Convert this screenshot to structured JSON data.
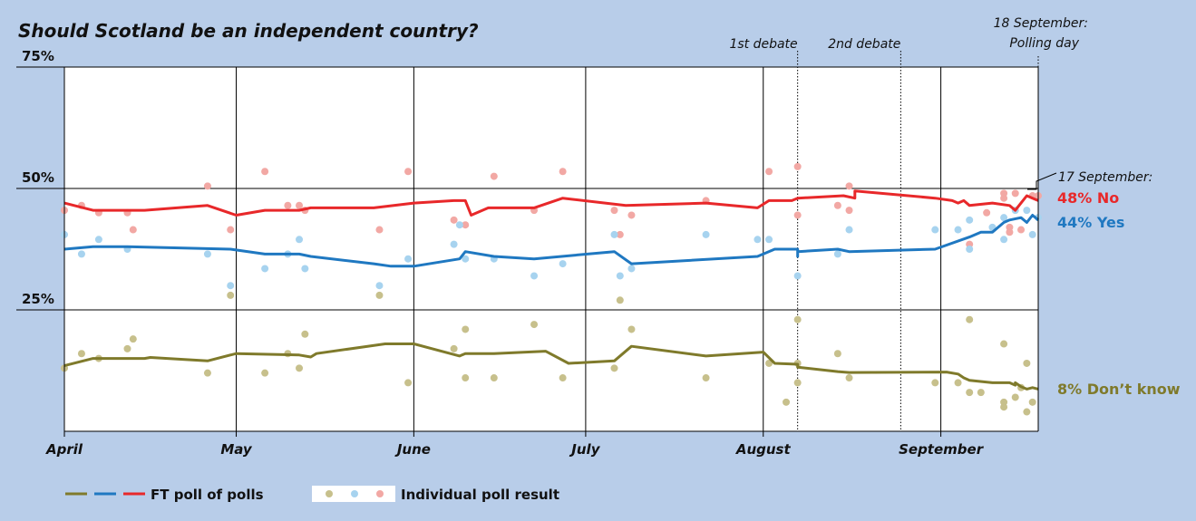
{
  "chart_data": {
    "type": "line",
    "title": "Should Scotland be an independent country?",
    "ylim": [
      0,
      75
    ],
    "y_ticks": [
      "75%",
      "50%",
      "25%"
    ],
    "y_tick_values": [
      75,
      50,
      25
    ],
    "x_range": [
      "2014-04-01",
      "2014-09-18"
    ],
    "months": [
      {
        "label": "April",
        "date": "2014-04-01"
      },
      {
        "label": "May",
        "date": "2014-05-01"
      },
      {
        "label": "June",
        "date": "2014-06-01"
      },
      {
        "label": "July",
        "date": "2014-07-01"
      },
      {
        "label": "August",
        "date": "2014-08-01"
      },
      {
        "label": "September",
        "date": "2014-09-01"
      }
    ],
    "grid": true,
    "events": [
      {
        "label": "1st debate",
        "date": "2014-08-07"
      },
      {
        "label": "2nd debate",
        "date": "2014-08-25"
      }
    ],
    "polling_day": {
      "line1": "18 September:",
      "line2": "Polling day",
      "date": "2014-09-18"
    },
    "latest_note": "17 September:",
    "colors": {
      "No": "#e8282a",
      "Yes": "#1f78c1",
      "Dont_know": "#7f7a2b",
      "No_dots": "#f2a8a4",
      "Yes_dots": "#a7d3ef",
      "Dont_know_dots": "#c7c08c"
    },
    "series": [
      {
        "key": "No",
        "end_label": "48% No",
        "line": [
          [
            "2014-04-01",
            47
          ],
          [
            "2014-04-06",
            45.5
          ],
          [
            "2014-04-15",
            45.5
          ],
          [
            "2014-04-26",
            46.5
          ],
          [
            "2014-05-01",
            44.5
          ],
          [
            "2014-05-06",
            45.5
          ],
          [
            "2014-05-12",
            45.5
          ],
          [
            "2014-05-14",
            46
          ],
          [
            "2014-05-25",
            46
          ],
          [
            "2014-06-01",
            47
          ],
          [
            "2014-06-08",
            47.5
          ],
          [
            "2014-06-10",
            47.5
          ],
          [
            "2014-06-11",
            44.5
          ],
          [
            "2014-06-14",
            46
          ],
          [
            "2014-06-22",
            46
          ],
          [
            "2014-06-27",
            48
          ],
          [
            "2014-07-08",
            46.5
          ],
          [
            "2014-07-22",
            47
          ],
          [
            "2014-07-31",
            46
          ],
          [
            "2014-08-02",
            47.5
          ],
          [
            "2014-08-06",
            47.5
          ],
          [
            "2014-08-07",
            48
          ],
          [
            "2014-08-15",
            48.5
          ],
          [
            "2014-08-17",
            48
          ],
          [
            "2014-08-17",
            49.5
          ],
          [
            "2014-08-31",
            48
          ],
          [
            "2014-09-03",
            47.5
          ],
          [
            "2014-09-04",
            47
          ],
          [
            "2014-09-05",
            47.5
          ],
          [
            "2014-09-06",
            46.5
          ],
          [
            "2014-09-10",
            47
          ],
          [
            "2014-09-13",
            46.5
          ],
          [
            "2014-09-14",
            45.5
          ],
          [
            "2014-09-15",
            47
          ],
          [
            "2014-09-16",
            48.5
          ],
          [
            "2014-09-17",
            48
          ],
          [
            "2014-09-18",
            47.5
          ]
        ],
        "polls": [
          [
            "2014-04-01",
            45.5
          ],
          [
            "2014-04-04",
            46.5
          ],
          [
            "2014-04-07",
            45
          ],
          [
            "2014-04-12",
            45
          ],
          [
            "2014-04-13",
            41.5
          ],
          [
            "2014-04-26",
            50.5
          ],
          [
            "2014-04-30",
            41.5
          ],
          [
            "2014-05-06",
            53.5
          ],
          [
            "2014-05-10",
            46.5
          ],
          [
            "2014-05-12",
            46.5
          ],
          [
            "2014-05-13",
            45.5
          ],
          [
            "2014-05-26",
            41.5
          ],
          [
            "2014-05-31",
            53.5
          ],
          [
            "2014-06-08",
            43.5
          ],
          [
            "2014-06-10",
            42.5
          ],
          [
            "2014-06-15",
            52.5
          ],
          [
            "2014-06-22",
            45.5
          ],
          [
            "2014-06-27",
            53.5
          ],
          [
            "2014-07-06",
            45.5
          ],
          [
            "2014-07-07",
            40.5
          ],
          [
            "2014-07-09",
            44.5
          ],
          [
            "2014-07-22",
            47.5
          ],
          [
            "2014-08-02",
            53.5
          ],
          [
            "2014-08-07",
            54.5
          ],
          [
            "2014-08-07",
            44.5
          ],
          [
            "2014-08-14",
            46.5
          ],
          [
            "2014-08-16",
            45.5
          ],
          [
            "2014-08-16",
            50.5
          ],
          [
            "2014-09-06",
            38.5
          ],
          [
            "2014-09-09",
            45
          ],
          [
            "2014-09-12",
            49
          ],
          [
            "2014-09-12",
            48
          ],
          [
            "2014-09-13",
            42
          ],
          [
            "2014-09-13",
            41
          ],
          [
            "2014-09-14",
            49
          ],
          [
            "2014-09-15",
            41.5
          ],
          [
            "2014-09-17",
            48.5
          ],
          [
            "2014-09-18",
            48.5
          ]
        ]
      },
      {
        "key": "Yes",
        "end_label": "44% Yes",
        "line": [
          [
            "2014-04-01",
            37.5
          ],
          [
            "2014-04-06",
            38
          ],
          [
            "2014-04-12",
            38
          ],
          [
            "2014-04-30",
            37.5
          ],
          [
            "2014-05-06",
            36.5
          ],
          [
            "2014-05-12",
            36.5
          ],
          [
            "2014-05-14",
            36
          ],
          [
            "2014-05-25",
            34.5
          ],
          [
            "2014-05-28",
            34
          ],
          [
            "2014-06-01",
            34
          ],
          [
            "2014-06-09",
            35.5
          ],
          [
            "2014-06-10",
            37
          ],
          [
            "2014-06-15",
            36
          ],
          [
            "2014-06-22",
            35.5
          ],
          [
            "2014-07-06",
            37
          ],
          [
            "2014-07-09",
            34.5
          ],
          [
            "2014-07-31",
            36
          ],
          [
            "2014-08-03",
            37.5
          ],
          [
            "2014-08-07",
            37.5
          ],
          [
            "2014-08-07",
            36
          ],
          [
            "2014-08-07",
            37
          ],
          [
            "2014-08-14",
            37.5
          ],
          [
            "2014-08-16",
            37
          ],
          [
            "2014-08-31",
            37.5
          ],
          [
            "2014-09-06",
            40
          ],
          [
            "2014-09-08",
            41
          ],
          [
            "2014-09-10",
            41
          ],
          [
            "2014-09-12",
            43
          ],
          [
            "2014-09-13",
            43.5
          ],
          [
            "2014-09-15",
            44
          ],
          [
            "2014-09-16",
            43
          ],
          [
            "2014-09-17",
            44.5
          ],
          [
            "2014-09-18",
            43.5
          ]
        ],
        "polls": [
          [
            "2014-04-01",
            40.5
          ],
          [
            "2014-04-04",
            36.5
          ],
          [
            "2014-04-07",
            39.5
          ],
          [
            "2014-04-12",
            37.5
          ],
          [
            "2014-04-26",
            36.5
          ],
          [
            "2014-04-30",
            30
          ],
          [
            "2014-05-06",
            33.5
          ],
          [
            "2014-05-10",
            36.5
          ],
          [
            "2014-05-12",
            39.5
          ],
          [
            "2014-05-13",
            33.5
          ],
          [
            "2014-05-26",
            30
          ],
          [
            "2014-05-31",
            35.5
          ],
          [
            "2014-06-08",
            38.5
          ],
          [
            "2014-06-09",
            42.5
          ],
          [
            "2014-06-10",
            35.5
          ],
          [
            "2014-06-15",
            35.5
          ],
          [
            "2014-06-22",
            32
          ],
          [
            "2014-06-27",
            34.5
          ],
          [
            "2014-07-06",
            40.5
          ],
          [
            "2014-07-07",
            32
          ],
          [
            "2014-07-09",
            33.5
          ],
          [
            "2014-07-22",
            40.5
          ],
          [
            "2014-07-31",
            39.5
          ],
          [
            "2014-08-02",
            39.5
          ],
          [
            "2014-08-07",
            32
          ],
          [
            "2014-08-14",
            36.5
          ],
          [
            "2014-08-16",
            41.5
          ],
          [
            "2014-08-31",
            41.5
          ],
          [
            "2014-09-04",
            41.5
          ],
          [
            "2014-09-06",
            43.5
          ],
          [
            "2014-09-06",
            37.5
          ],
          [
            "2014-09-10",
            42
          ],
          [
            "2014-09-12",
            44
          ],
          [
            "2014-09-12",
            39.5
          ],
          [
            "2014-09-14",
            45.5
          ],
          [
            "2014-09-16",
            45.5
          ],
          [
            "2014-09-17",
            40.5
          ],
          [
            "2014-09-18",
            44
          ]
        ]
      },
      {
        "key": "Dont_know",
        "end_label": "8% Don’t know",
        "line": [
          [
            "2014-04-01",
            13.5
          ],
          [
            "2014-04-06",
            15
          ],
          [
            "2014-04-15",
            15
          ],
          [
            "2014-04-16",
            15.2
          ],
          [
            "2014-04-26",
            14.5
          ],
          [
            "2014-05-01",
            16
          ],
          [
            "2014-05-12",
            15.7
          ],
          [
            "2014-05-14",
            15.3
          ],
          [
            "2014-05-15",
            16
          ],
          [
            "2014-05-27",
            18
          ],
          [
            "2014-06-01",
            18
          ],
          [
            "2014-06-09",
            15.5
          ],
          [
            "2014-06-10",
            16
          ],
          [
            "2014-06-15",
            16
          ],
          [
            "2014-06-24",
            16.5
          ],
          [
            "2014-06-28",
            14
          ],
          [
            "2014-07-06",
            14.5
          ],
          [
            "2014-07-09",
            17.5
          ],
          [
            "2014-07-22",
            15.5
          ],
          [
            "2014-08-01",
            16.3
          ],
          [
            "2014-08-03",
            14
          ],
          [
            "2014-08-07",
            13.8
          ],
          [
            "2014-08-07",
            13.2
          ],
          [
            "2014-08-14",
            12.3
          ],
          [
            "2014-08-16",
            12.1
          ],
          [
            "2014-09-02",
            12.2
          ],
          [
            "2014-09-04",
            11.8
          ],
          [
            "2014-09-05",
            11
          ],
          [
            "2014-09-06",
            10.5
          ],
          [
            "2014-09-10",
            10
          ],
          [
            "2014-09-13",
            10
          ],
          [
            "2014-09-14",
            9.5
          ],
          [
            "2014-09-14",
            10
          ],
          [
            "2014-09-15",
            9.2
          ],
          [
            "2014-09-16",
            8.7
          ],
          [
            "2014-09-17",
            9
          ],
          [
            "2014-09-18",
            8.7
          ]
        ],
        "polls": [
          [
            "2014-04-01",
            13
          ],
          [
            "2014-04-04",
            16
          ],
          [
            "2014-04-07",
            15
          ],
          [
            "2014-04-12",
            17
          ],
          [
            "2014-04-13",
            19
          ],
          [
            "2014-04-26",
            12
          ],
          [
            "2014-04-30",
            28
          ],
          [
            "2014-05-06",
            12
          ],
          [
            "2014-05-10",
            16
          ],
          [
            "2014-05-12",
            13
          ],
          [
            "2014-05-13",
            20
          ],
          [
            "2014-05-26",
            28
          ],
          [
            "2014-05-31",
            10
          ],
          [
            "2014-06-08",
            17
          ],
          [
            "2014-06-10",
            11
          ],
          [
            "2014-06-10",
            21
          ],
          [
            "2014-06-15",
            11
          ],
          [
            "2014-06-22",
            22
          ],
          [
            "2014-06-27",
            11
          ],
          [
            "2014-07-06",
            13
          ],
          [
            "2014-07-07",
            27
          ],
          [
            "2014-07-09",
            21
          ],
          [
            "2014-07-22",
            11
          ],
          [
            "2014-08-02",
            14
          ],
          [
            "2014-08-05",
            6
          ],
          [
            "2014-08-07",
            23
          ],
          [
            "2014-08-07",
            10
          ],
          [
            "2014-08-07",
            14
          ],
          [
            "2014-08-14",
            16
          ],
          [
            "2014-08-16",
            11
          ],
          [
            "2014-08-31",
            10
          ],
          [
            "2014-09-04",
            10
          ],
          [
            "2014-09-06",
            23
          ],
          [
            "2014-09-06",
            8
          ],
          [
            "2014-09-08",
            8
          ],
          [
            "2014-09-12",
            18
          ],
          [
            "2014-09-12",
            6
          ],
          [
            "2014-09-12",
            5
          ],
          [
            "2014-09-14",
            7
          ],
          [
            "2014-09-15",
            9
          ],
          [
            "2014-09-16",
            4
          ],
          [
            "2014-09-16",
            14
          ],
          [
            "2014-09-17",
            6
          ]
        ]
      }
    ]
  },
  "legend": {
    "poll_of_polls": "FT poll of polls",
    "individual": "Individual poll result"
  }
}
